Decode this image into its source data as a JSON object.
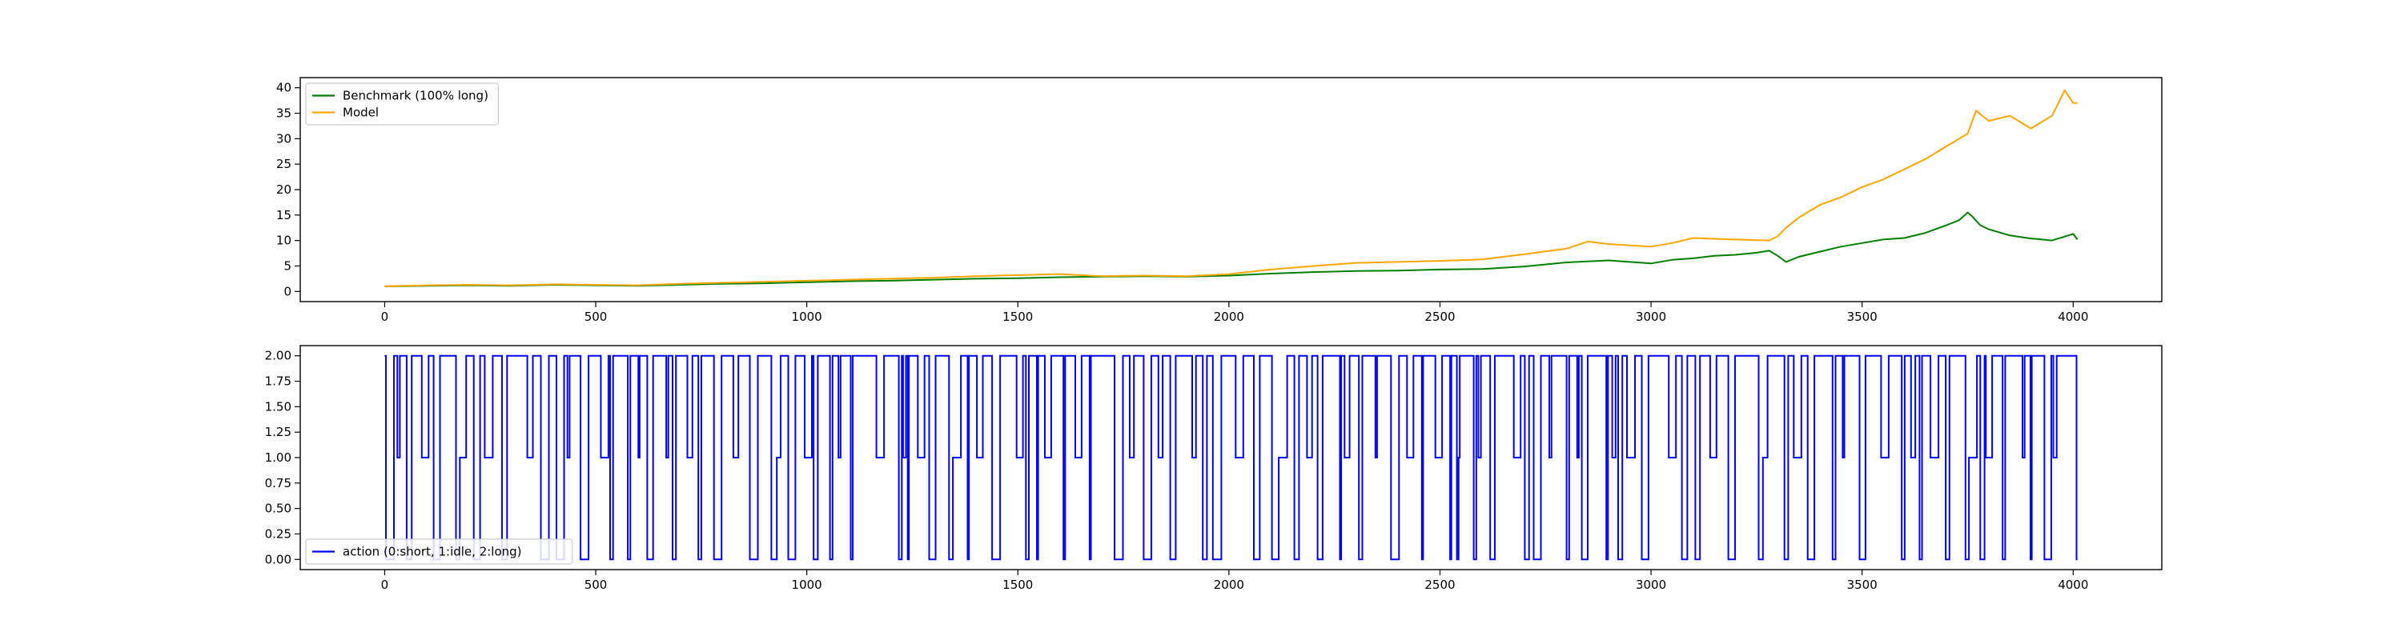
{
  "chart_data": [
    {
      "type": "line",
      "title": "",
      "xlabel": "",
      "ylabel": "",
      "xlim": [
        -200,
        4210
      ],
      "ylim": [
        -2,
        42
      ],
      "xticks": [
        0,
        500,
        1000,
        1500,
        2000,
        2500,
        3000,
        3500,
        4000
      ],
      "yticks": [
        0,
        5,
        10,
        15,
        20,
        25,
        30,
        35,
        40
      ],
      "grid": false,
      "legend_position": "top-left",
      "series": [
        {
          "name": "Benchmark (100% long)",
          "color": "#008000",
          "x": [
            0,
            100,
            200,
            300,
            400,
            500,
            600,
            700,
            800,
            900,
            1000,
            1100,
            1200,
            1300,
            1400,
            1500,
            1600,
            1700,
            1800,
            1900,
            2000,
            2100,
            2200,
            2300,
            2400,
            2500,
            2600,
            2700,
            2800,
            2900,
            3000,
            3050,
            3100,
            3150,
            3200,
            3250,
            3280,
            3300,
            3320,
            3350,
            3400,
            3450,
            3500,
            3550,
            3600,
            3650,
            3700,
            3730,
            3750,
            3760,
            3780,
            3800,
            3850,
            3900,
            3950,
            4000,
            4010
          ],
          "y": [
            1.0,
            1.1,
            1.2,
            1.1,
            1.3,
            1.2,
            1.1,
            1.3,
            1.5,
            1.6,
            1.8,
            2.0,
            2.1,
            2.3,
            2.5,
            2.6,
            2.8,
            2.9,
            3.0,
            2.9,
            3.1,
            3.5,
            3.8,
            4.0,
            4.1,
            4.3,
            4.4,
            4.9,
            5.7,
            6.1,
            5.5,
            6.2,
            6.5,
            7.0,
            7.2,
            7.6,
            8.0,
            7.0,
            5.8,
            6.8,
            7.8,
            8.8,
            9.5,
            10.2,
            10.5,
            11.5,
            13.0,
            14.0,
            15.5,
            14.8,
            13.0,
            12.2,
            11.0,
            10.4,
            10.0,
            11.3,
            10.2
          ]
        },
        {
          "name": "Model",
          "color": "#FFA500",
          "x": [
            0,
            100,
            200,
            300,
            400,
            500,
            600,
            700,
            800,
            900,
            1000,
            1100,
            1200,
            1300,
            1400,
            1500,
            1600,
            1700,
            1800,
            1900,
            2000,
            2100,
            2200,
            2300,
            2400,
            2500,
            2600,
            2700,
            2800,
            2850,
            2900,
            3000,
            3050,
            3100,
            3200,
            3280,
            3300,
            3320,
            3350,
            3400,
            3450,
            3500,
            3550,
            3600,
            3650,
            3700,
            3750,
            3770,
            3800,
            3850,
            3900,
            3950,
            3980,
            4000,
            4010
          ],
          "y": [
            1.0,
            1.2,
            1.3,
            1.2,
            1.4,
            1.3,
            1.2,
            1.5,
            1.7,
            1.9,
            2.1,
            2.3,
            2.5,
            2.7,
            3.0,
            3.2,
            3.4,
            3.0,
            3.1,
            3.0,
            3.4,
            4.3,
            5.0,
            5.6,
            5.8,
            6.0,
            6.3,
            7.3,
            8.4,
            9.8,
            9.3,
            8.8,
            9.5,
            10.5,
            10.2,
            10.0,
            10.8,
            12.5,
            14.5,
            17.0,
            18.5,
            20.5,
            22.0,
            24.0,
            26.0,
            28.5,
            31.0,
            35.5,
            33.5,
            34.5,
            32.0,
            34.5,
            39.5,
            37.0,
            37.0
          ]
        }
      ]
    },
    {
      "type": "line",
      "title": "",
      "xlabel": "",
      "ylabel": "",
      "xlim": [
        -200,
        4210
      ],
      "ylim": [
        -0.1,
        2.1
      ],
      "xticks": [
        0,
        500,
        1000,
        1500,
        2000,
        2500,
        3000,
        3500,
        4000
      ],
      "yticks": [
        0.0,
        0.25,
        0.5,
        0.75,
        1.0,
        1.25,
        1.5,
        1.75,
        2.0
      ],
      "ytick_labels": [
        "0.00",
        "0.25",
        "0.50",
        "0.75",
        "1.00",
        "1.25",
        "1.50",
        "1.75",
        "2.00"
      ],
      "grid": false,
      "legend_position": "lower-left",
      "drawstyle": "steps-post",
      "action_states": {
        "short": 0,
        "idle": 1,
        "long": 2
      },
      "series": [
        {
          "name": "action (0:short, 1:idle, 2:long)",
          "color": "#0000FF",
          "x_range": [
            0,
            4010
          ],
          "note_values": "discrete actions over steps 0–4010, each value one of {0, 1, 2}; frequent switching, mostly 2 with dips to 0 and 1",
          "y_sample": [
            2,
            0,
            2,
            1,
            2,
            0,
            2,
            2,
            1,
            2,
            0,
            2,
            2,
            2,
            0,
            1,
            2,
            2,
            0,
            2,
            1,
            2,
            2,
            0,
            2,
            2,
            2,
            1,
            2,
            0,
            2,
            2,
            0,
            2,
            1,
            2,
            2,
            2,
            0,
            2,
            2,
            1,
            2,
            0,
            2,
            2,
            2,
            0,
            2,
            1,
            2,
            2,
            0,
            2,
            2,
            1,
            2,
            0,
            2,
            2,
            2,
            1,
            2,
            0,
            2,
            2,
            0,
            2,
            2,
            1,
            2,
            2,
            0,
            2,
            2,
            2,
            0,
            1,
            2,
            2,
            0,
            2,
            2,
            1,
            2,
            0,
            2,
            2,
            2,
            0,
            2,
            1,
            2,
            2,
            0,
            2,
            2,
            2,
            1,
            2
          ]
        }
      ]
    }
  ]
}
